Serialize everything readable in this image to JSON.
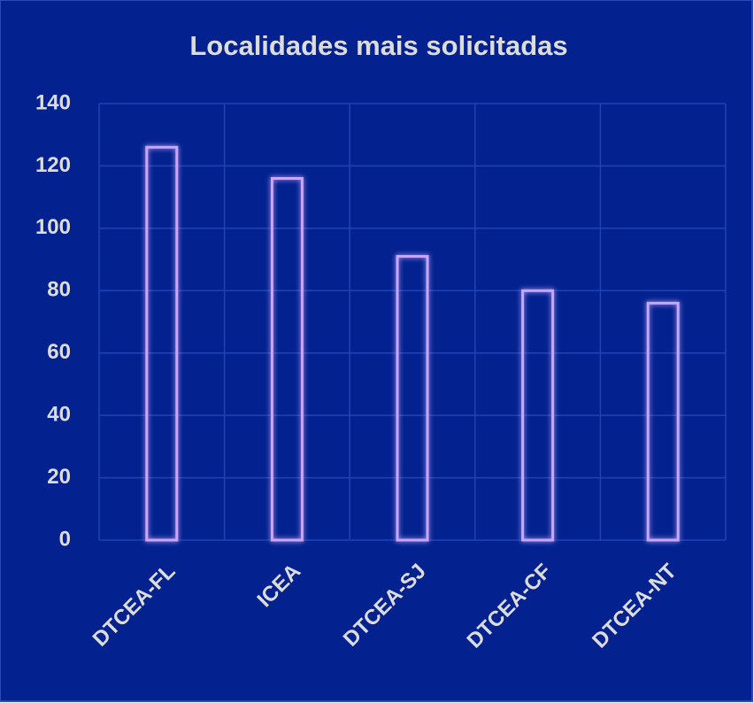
{
  "chart_data": {
    "type": "bar",
    "title": "Localidades mais solicitadas",
    "categories": [
      "DTCEA-FL",
      "ICEA",
      "DTCEA-SJ",
      "DTCEA-CF",
      "DTCEA-NT"
    ],
    "values": [
      126,
      116,
      91,
      80,
      76
    ],
    "color": "#c9a6ff",
    "ylim": [
      0,
      140
    ],
    "yticks": [
      0,
      20,
      40,
      60,
      80,
      100,
      120,
      140
    ],
    "grid": true
  }
}
